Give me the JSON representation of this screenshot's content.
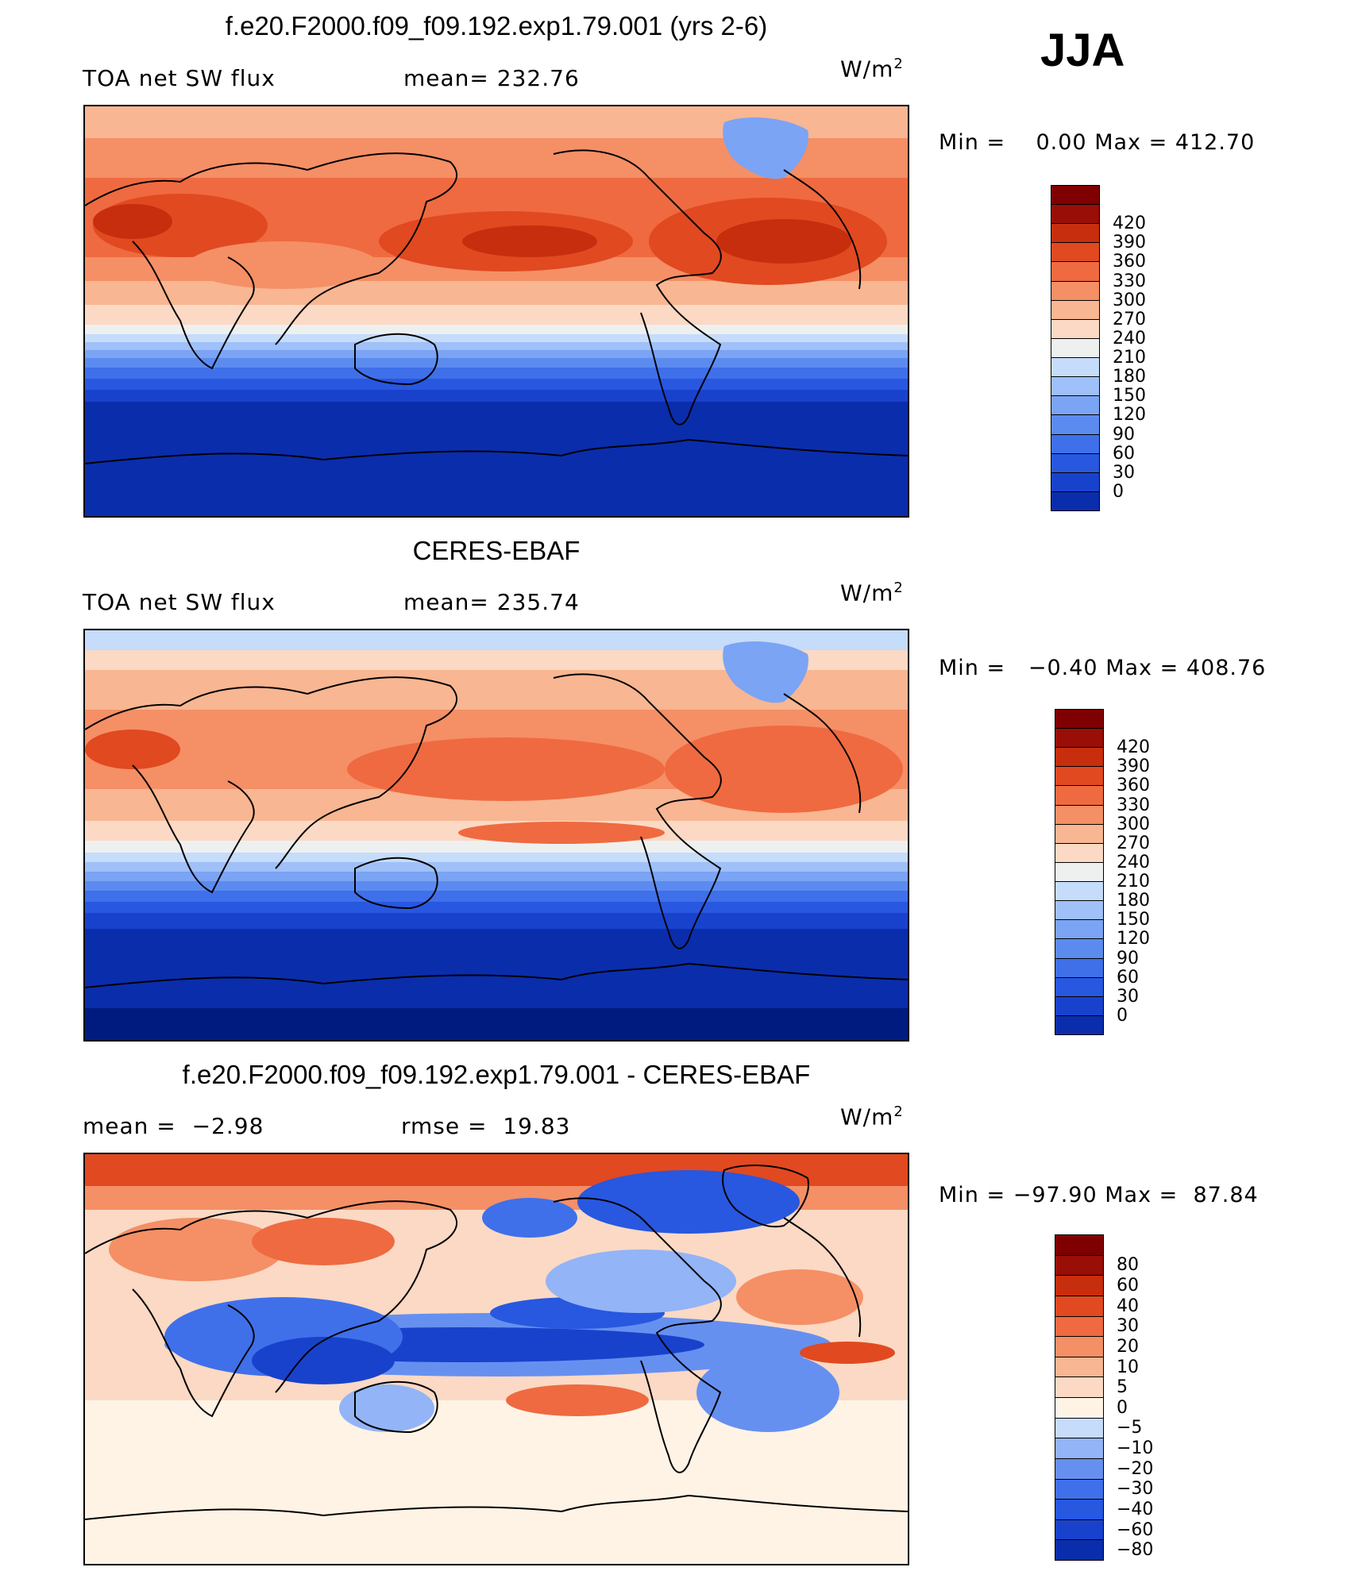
{
  "season": "JJA",
  "colors": {
    "abs": [
      "#001b7f",
      "#0a2dac",
      "#1942cc",
      "#2857e0",
      "#3f70ea",
      "#5c8bf0",
      "#7ba4f4",
      "#9fc0f8",
      "#c5dcfa",
      "#eef0f0",
      "#fbd9c4",
      "#f8b692",
      "#f58f66",
      "#ef6a40",
      "#e14920",
      "#c72e0e",
      "#990e06",
      "#7f0000"
    ],
    "diff": [
      "#001b7f",
      "#0a2dac",
      "#1942cc",
      "#2857e0",
      "#3f70ea",
      "#6690f0",
      "#93b4f6",
      "#c7dbfa",
      "#fff3e6",
      "#fbd9c4",
      "#f8b692",
      "#f58f66",
      "#ef6a40",
      "#e14920",
      "#c72e0e",
      "#990e06",
      "#7f0000"
    ]
  },
  "panels": [
    {
      "title": "f.e20.F2000.f09_f09.192.exp1.79.001 (yrs 2-6)",
      "left_label": "TOA net SW flux",
      "mean_label": "mean=",
      "mean_value": "232.76",
      "units_base": "W/m",
      "units_exp": "2",
      "min_label": "Min =",
      "min_value": "0.00",
      "max_label": "Max =",
      "max_value": "412.70",
      "colorbar": [
        "420",
        "390",
        "360",
        "330",
        "300",
        "270",
        "240",
        "210",
        "180",
        "150",
        "120",
        "90",
        "60",
        "30",
        "0"
      ]
    },
    {
      "title": "CERES-EBAF",
      "left_label": "TOA net SW flux",
      "mean_label": "mean=",
      "mean_value": "235.74",
      "units_base": "W/m",
      "units_exp": "2",
      "min_label": "Min =",
      "min_value": "−0.40",
      "max_label": "Max =",
      "max_value": "408.76",
      "colorbar": [
        "420",
        "390",
        "360",
        "330",
        "300",
        "270",
        "240",
        "210",
        "180",
        "150",
        "120",
        "90",
        "60",
        "30",
        "0"
      ]
    },
    {
      "title": "f.e20.F2000.f09_f09.192.exp1.79.001 - CERES-EBAF",
      "left_label": "mean =",
      "left_value": "−2.98",
      "mean_label": "rmse =",
      "mean_value": "19.83",
      "units_base": "W/m",
      "units_exp": "2",
      "min_label": "Min =",
      "min_value": "−97.90",
      "max_label": "Max =",
      "max_value": "87.84",
      "colorbar": [
        "80",
        "60",
        "40",
        "30",
        "20",
        "10",
        "5",
        "0",
        "−5",
        "−10",
        "−20",
        "−30",
        "−40",
        "−60",
        "−80"
      ]
    }
  ]
}
